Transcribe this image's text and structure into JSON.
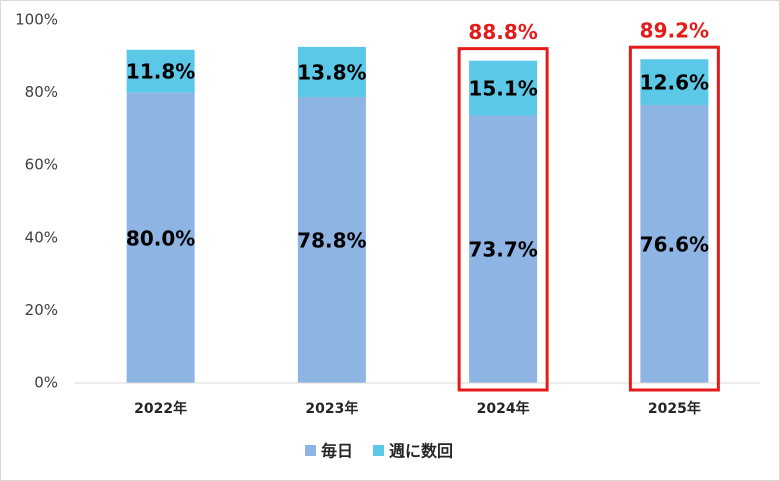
{
  "chart_data": {
    "type": "stacked_bar",
    "categories": [
      "2022年",
      "2023年",
      "2024年",
      "2025年"
    ],
    "series": [
      {
        "name": "毎日",
        "color": "#8db4e2",
        "values": [
          80.0,
          78.8,
          73.7,
          76.6
        ],
        "value_labels": [
          "80.0%",
          "78.8%",
          "73.7%",
          "76.6%"
        ]
      },
      {
        "name": "週に数回",
        "color": "#5bc8e8",
        "values": [
          11.8,
          13.8,
          15.1,
          12.6
        ],
        "value_labels": [
          "11.8%",
          "13.8%",
          "15.1%",
          "12.6%"
        ]
      }
    ],
    "ylim": [
      0,
      100
    ],
    "yticks": [
      {
        "value": 0,
        "label": "0%"
      },
      {
        "value": 20,
        "label": "20%"
      },
      {
        "value": 40,
        "label": "40%"
      },
      {
        "value": 60,
        "label": "60%"
      },
      {
        "value": 80,
        "label": "80%"
      },
      {
        "value": 100,
        "label": "100%"
      }
    ],
    "grid": false,
    "legend": "bottom",
    "annotations": [
      {
        "category": "2024年",
        "value": 88.8,
        "label": "88.8%",
        "color": "#e41b1b"
      },
      {
        "category": "2025年",
        "value": 89.2,
        "label": "89.2%",
        "color": "#e41b1b"
      }
    ]
  }
}
